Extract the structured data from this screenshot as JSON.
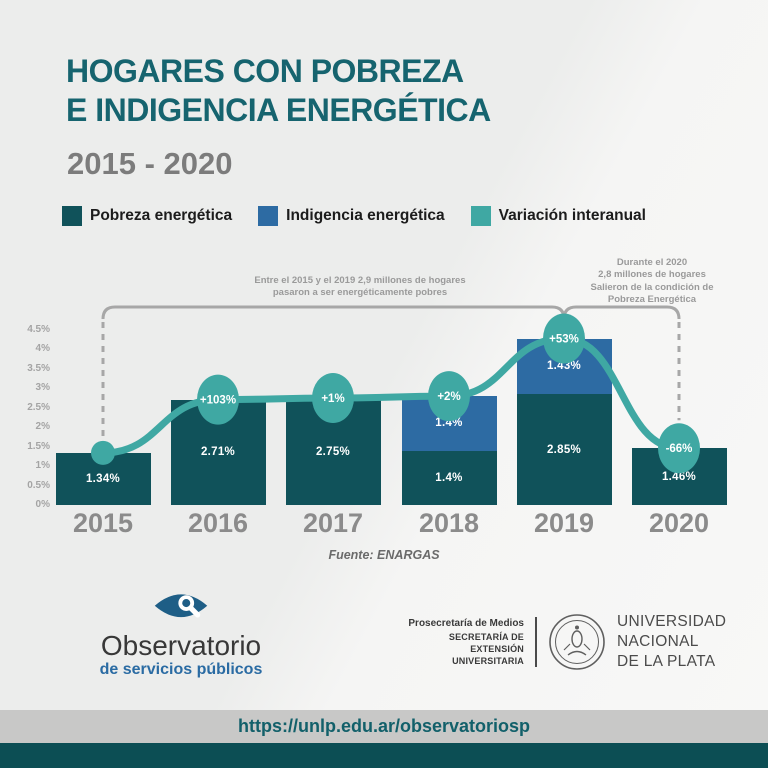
{
  "header": {
    "title_line1": "HOGARES CON POBREZA",
    "title_line2": "E INDIGENCIA ENERGÉTICA",
    "subtitle": "2015 - 2020"
  },
  "legend": [
    {
      "label": "Pobreza energética",
      "color": "#10525a"
    },
    {
      "label": "Indigencia energética",
      "color": "#2d6ba3"
    },
    {
      "label": "Variación interanual",
      "color": "#3fa8a3"
    }
  ],
  "annotations": {
    "left": [
      "Entre el 2015 y el 2019 2,9 millones de hogares",
      "pasaron a ser energéticamente pobres"
    ],
    "right": [
      "Durante el 2020",
      "2,8 millones de hogares",
      "Salieron de la condición de",
      "Pobreza Energética"
    ]
  },
  "chart_data": {
    "type": "bar",
    "stacked": true,
    "categories": [
      "2015",
      "2016",
      "2017",
      "2018",
      "2019",
      "2020"
    ],
    "series": [
      {
        "name": "Pobreza energética",
        "type": "bar",
        "color": "#10525a",
        "values": [
          1.34,
          2.71,
          2.75,
          1.4,
          2.85,
          1.46
        ],
        "labels": [
          "1.34%",
          "2.71%",
          "2.75%",
          "1.4%",
          "2.85%",
          "1.46%"
        ]
      },
      {
        "name": "Indigencia energética",
        "type": "bar",
        "color": "#2d6ba3",
        "values": [
          null,
          null,
          null,
          1.4,
          1.43,
          null
        ],
        "labels": [
          null,
          null,
          null,
          "1.4%",
          "1.43%",
          null
        ]
      },
      {
        "name": "Variación interanual",
        "type": "line",
        "color": "#3fa8a3",
        "labels": [
          null,
          "+103%",
          "+1%",
          "+2%",
          "+53%",
          "-66%"
        ]
      }
    ],
    "y_ticks": [
      "4.5%",
      "4%",
      "3.5%",
      "3%",
      "2.5%",
      "2%",
      "1.5%",
      "1%",
      "0.5%",
      "0%"
    ],
    "ylim": [
      0,
      4.5
    ],
    "grid": false,
    "legend_position": "top",
    "source": "Fuente: ENARGAS"
  },
  "logos": {
    "observatorio": {
      "title": "Observatorio",
      "subtitle": "de servicios públicos"
    },
    "unlp": {
      "left_line1": "Prosecretaría de Medios",
      "left_line2": "SECRETARÍA DE",
      "left_line3": "EXTENSIÓN UNIVERSITARIA",
      "name_lines": [
        "UNIVERSIDAD",
        "NACIONAL",
        "DE LA PLATA"
      ]
    }
  },
  "footer": {
    "url": "https://unlp.edu.ar/observatoriosp"
  }
}
